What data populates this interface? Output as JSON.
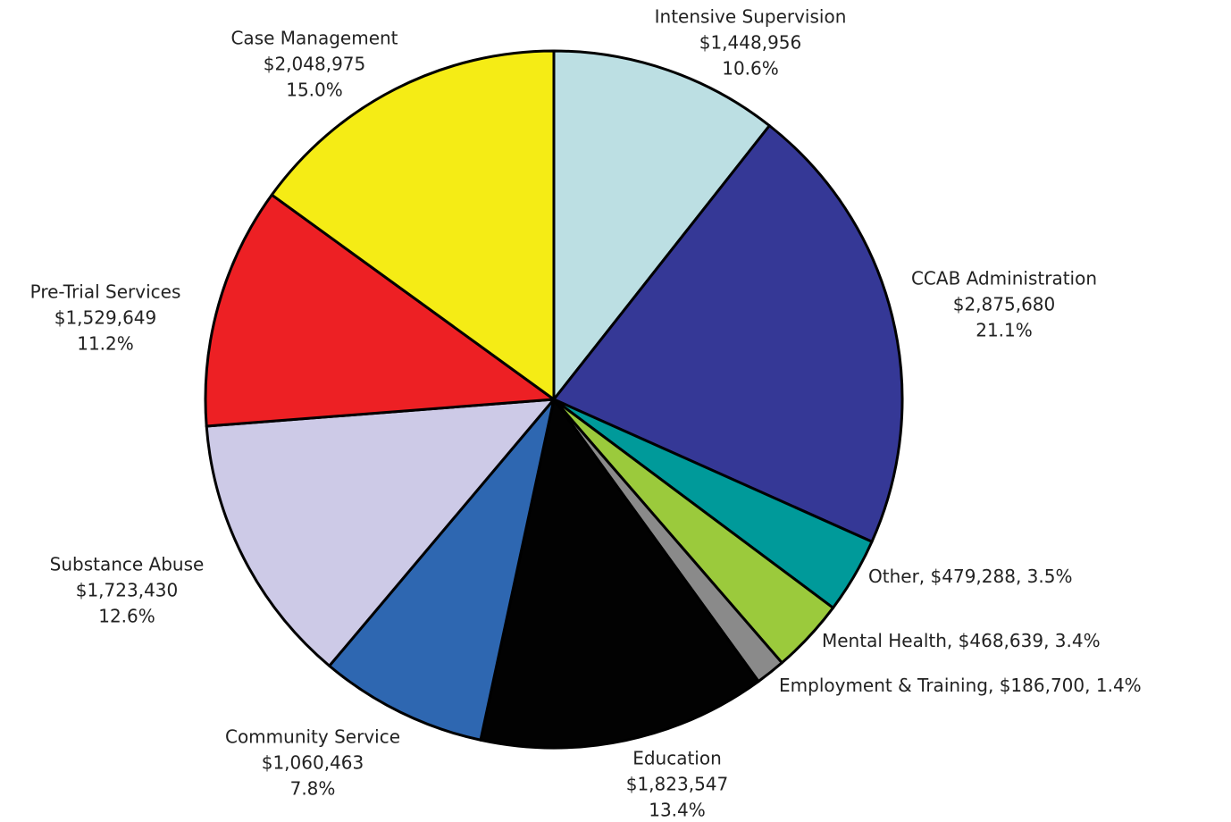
{
  "chart_data": {
    "type": "pie",
    "categories": [
      "Intensive Supervision",
      "CCAB Administration",
      "Other",
      "Mental Health",
      "Employment & Training",
      "Education",
      "Community Service",
      "Substance Abuse",
      "Pre-Trial Services",
      "Case Management"
    ],
    "values": [
      1448956,
      2875680,
      479288,
      468639,
      186700,
      1823547,
      1060463,
      1723430,
      1529649,
      2048975
    ],
    "value_labels": [
      "$1,448,956",
      "$2,875,680",
      "$479,288",
      "$468,639",
      "$186,700",
      "$1,823,547",
      "$1,060,463",
      "$1,723,430",
      "$1,529,649",
      "$2,048,975"
    ],
    "percents": [
      10.6,
      21.1,
      3.5,
      3.4,
      1.4,
      13.4,
      7.8,
      12.6,
      11.2,
      15.0
    ],
    "percent_labels": [
      "10.6%",
      "21.1%",
      "3.5%",
      "3.4%",
      "1.4%",
      "13.4%",
      "7.8%",
      "12.6%",
      "11.2%",
      "15.0%"
    ],
    "colors": [
      "#bcdfe3",
      "#353896",
      "#009a9a",
      "#9bca3c",
      "#8a8a8a",
      "#020202",
      "#2e67b1",
      "#cdcae7",
      "#ed2024",
      "#f5ec15"
    ]
  }
}
